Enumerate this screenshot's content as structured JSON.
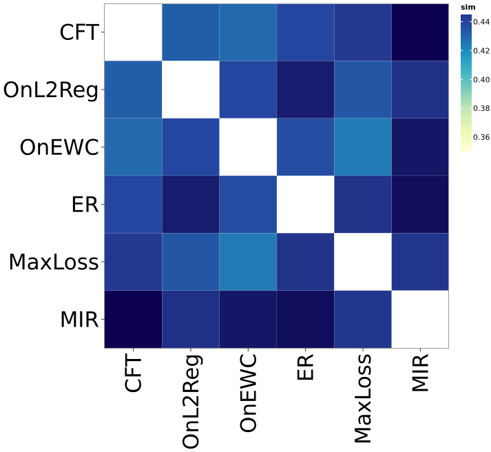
{
  "chart_data": {
    "type": "heatmap",
    "title": "",
    "xlabel": "",
    "ylabel": "",
    "x_categories": [
      "CFT",
      "OnL2Reg",
      "OnEWC",
      "ER",
      "MaxLoss",
      "MIR"
    ],
    "y_categories": [
      "CFT",
      "OnL2Reg",
      "OnEWC",
      "ER",
      "MaxLoss",
      "MIR"
    ],
    "values": [
      [
        null,
        0.425,
        0.422,
        0.432,
        0.437,
        0.458
      ],
      [
        0.425,
        null,
        0.432,
        0.446,
        0.427,
        0.44
      ],
      [
        0.422,
        0.432,
        null,
        0.43,
        0.418,
        0.449
      ],
      [
        0.432,
        0.446,
        0.43,
        null,
        0.439,
        0.453
      ],
      [
        0.437,
        0.427,
        0.418,
        0.439,
        null,
        0.438
      ],
      [
        0.458,
        0.44,
        0.449,
        0.453,
        0.438,
        null
      ]
    ],
    "legend": {
      "title": "sim",
      "position": "top-right",
      "ticks": [
        "0.36",
        "0.38",
        "0.40",
        "0.42",
        "0.44"
      ],
      "tick_values": [
        0.36,
        0.38,
        0.4,
        0.42,
        0.44
      ],
      "range": [
        0.35,
        0.445
      ],
      "colormap": "YlGnBu"
    },
    "colors": {
      "missing": "#ffffff",
      "stops": [
        "#ffffd9",
        "#edf8b1",
        "#c7e9b4",
        "#7fcdbb",
        "#41b6c4",
        "#1d91c0",
        "#225ea8",
        "#253494",
        "#081d58",
        "#0d0050"
      ]
    }
  }
}
